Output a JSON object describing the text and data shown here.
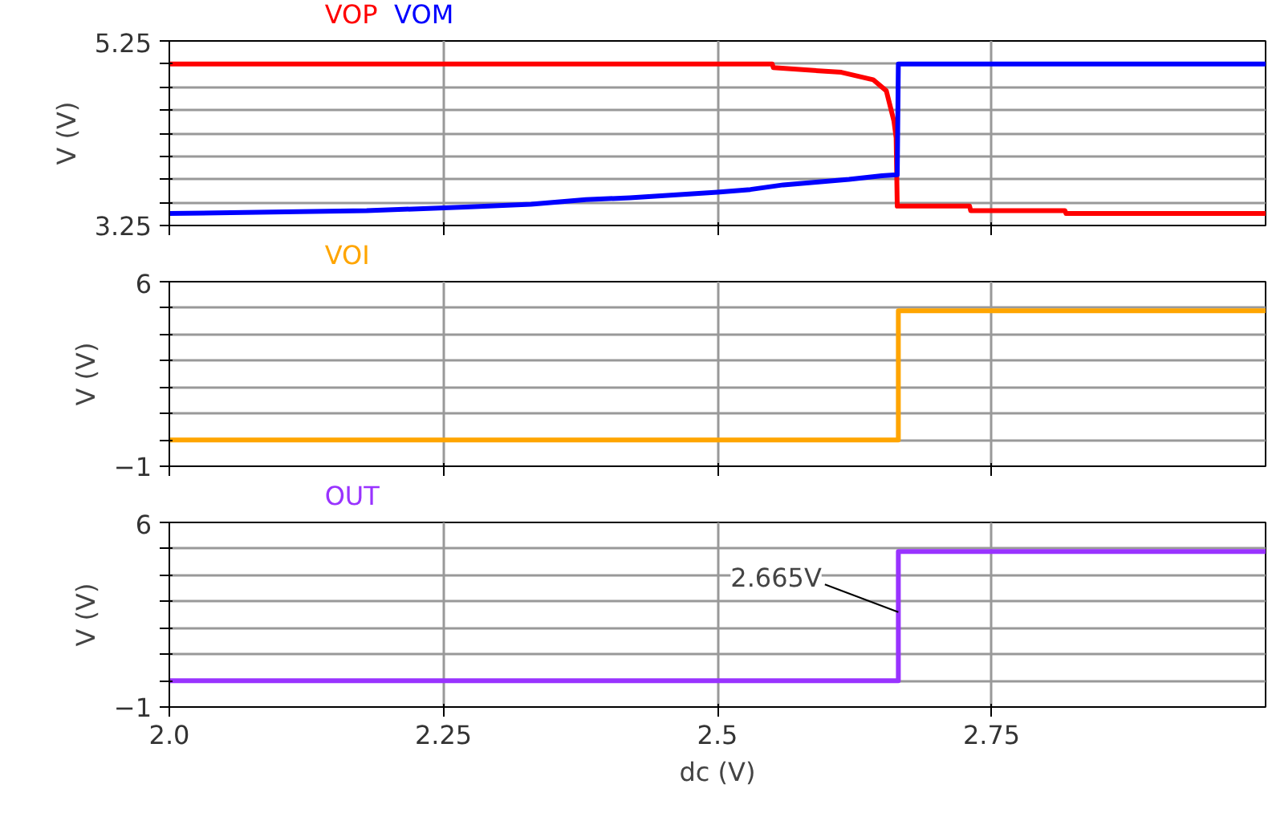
{
  "chart_data": [
    {
      "type": "line",
      "ylabel": "V (V)",
      "xlim": [
        2.0,
        3.0
      ],
      "xticks": [
        {
          "value": 2.0,
          "label": null
        },
        {
          "value": 2.25,
          "label": null
        },
        {
          "value": 2.5,
          "label": null
        },
        {
          "value": 2.75,
          "label": null
        }
      ],
      "ylim": [
        3.25,
        5.25
      ],
      "yticks": [
        3.25,
        {
          "value": 3.5,
          "label": null
        },
        {
          "value": 3.75,
          "label": null
        },
        {
          "value": 4.0,
          "label": null
        },
        {
          "value": 4.25,
          "label": null
        },
        {
          "value": 4.5,
          "label": null
        },
        {
          "value": 4.75,
          "label": null
        },
        {
          "value": 5.0,
          "label": null
        },
        5.25
      ],
      "grid": true,
      "tick_labels": "y",
      "series": [
        {
          "name": "VOP",
          "color": "#ff0000",
          "x": [
            2.0,
            2.55,
            2.551,
            2.613,
            2.642,
            2.654,
            2.661,
            2.663,
            2.664,
            2.73,
            2.731,
            2.817,
            2.818,
            3.0
          ],
          "values": [
            5.0,
            5.0,
            4.96,
            4.91,
            4.83,
            4.71,
            4.38,
            4.2,
            3.46,
            3.46,
            3.41,
            3.41,
            3.38,
            3.38
          ]
        },
        {
          "name": "VOM",
          "color": "#0000ff",
          "x": [
            2.0,
            2.18,
            2.27,
            2.33,
            2.38,
            2.42,
            2.46,
            2.5,
            2.53,
            2.56,
            2.59,
            2.62,
            2.65,
            2.664,
            2.665,
            3.0
          ],
          "values": [
            3.38,
            3.41,
            3.45,
            3.48,
            3.53,
            3.55,
            3.58,
            3.61,
            3.64,
            3.69,
            3.72,
            3.75,
            3.79,
            3.8,
            5.0,
            5.0
          ]
        }
      ]
    },
    {
      "type": "line",
      "ylabel": "V (V)",
      "xlim": [
        2.0,
        3.0
      ],
      "xticks": [
        {
          "value": 2.0,
          "label": null
        },
        {
          "value": 2.25,
          "label": null
        },
        {
          "value": 2.5,
          "label": null
        },
        {
          "value": 2.75,
          "label": null
        }
      ],
      "ylim": [
        -1,
        6
      ],
      "yticks": [
        -1,
        {
          "value": 0,
          "label": null
        },
        {
          "value": 1,
          "label": null
        },
        {
          "value": 2,
          "label": null
        },
        {
          "value": 3,
          "label": null
        },
        {
          "value": 4,
          "label": null
        },
        {
          "value": 5,
          "label": null
        },
        6
      ],
      "grid": true,
      "tick_labels": "y",
      "series": [
        {
          "name": "VOI",
          "color": "#ffa500",
          "x": [
            2.0,
            2.665,
            2.665,
            3.0
          ],
          "values": [
            0,
            0,
            4.9,
            4.9
          ]
        }
      ]
    },
    {
      "type": "line",
      "ylabel": "V (V)",
      "xlabel": "dc (V)",
      "xlim": [
        2.0,
        3.0
      ],
      "xticks": [
        {
          "value": 2.0,
          "label": "2.0"
        },
        2.25,
        2.5,
        2.75
      ],
      "ylim": [
        -1,
        6
      ],
      "yticks": [
        -1,
        {
          "value": 0,
          "label": null
        },
        {
          "value": 1,
          "label": null
        },
        {
          "value": 2,
          "label": null
        },
        {
          "value": 3,
          "label": null
        },
        {
          "value": 4,
          "label": null
        },
        {
          "value": 5,
          "label": null
        },
        6
      ],
      "grid": true,
      "annotations": [
        {
          "text": "2.665V",
          "x": 2.665,
          "y": 2.6
        }
      ],
      "series": [
        {
          "name": "OUT",
          "color": "#9933ff",
          "x": [
            2.0,
            2.665,
            2.665,
            3.0
          ],
          "values": [
            0,
            0,
            4.9,
            4.9
          ]
        }
      ]
    }
  ]
}
